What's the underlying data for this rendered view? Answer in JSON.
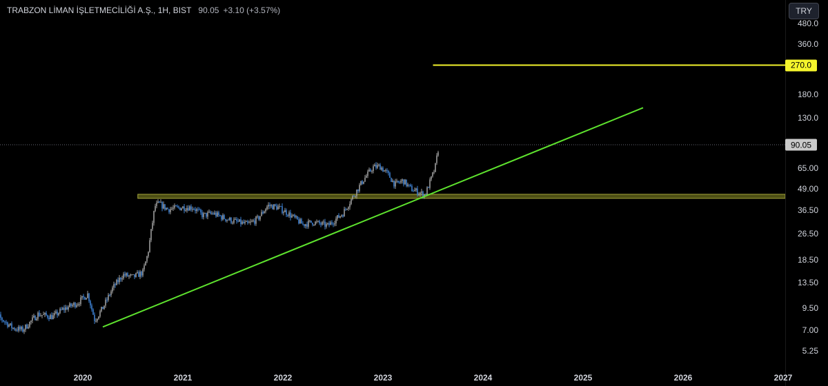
{
  "header": {
    "symbol": "TRABZON LİMAN İŞLETMECİLİĞİ A.Ş., 1H, BIST",
    "last_price": "90.05",
    "change": "+3.10 (+3.57%)"
  },
  "currency_button": "TRY",
  "price_axis": {
    "scale": "log",
    "ticks": [
      "480.0",
      "360.0",
      "180.0",
      "130.0",
      "65.00",
      "49.00",
      "36.50",
      "26.50",
      "18.50",
      "13.50",
      "9.50",
      "7.00",
      "5.25"
    ]
  },
  "time_axis": {
    "ticks": [
      "2020",
      "2021",
      "2022",
      "2023",
      "2024",
      "2025",
      "2026",
      "2027"
    ]
  },
  "current_price_tag": "90.05",
  "target_price_tag": "270.0",
  "colors": {
    "background": "#000000",
    "candle_up": "#9e9e9e",
    "candle_down": "#3d7fd1",
    "trendline": "#5ee32e",
    "target_line": "#f5f52c",
    "support_zone_fill": "#5b5c18",
    "support_zone_border": "#a2a43a",
    "current_price_tag_bg": "#c9c9c9",
    "target_tag_bg": "#f5f52c"
  },
  "chart_data": {
    "type": "line",
    "title": "",
    "scale": "log",
    "x_range": [
      2019.0,
      2027.0
    ],
    "y_range": [
      5.25,
      480.0
    ],
    "series": [
      {
        "x": [
          2019.0,
          2019.15,
          2019.3,
          2019.4,
          2019.55,
          2019.7,
          2019.8,
          2019.95,
          2020.05,
          2020.12,
          2020.2,
          2020.3,
          2020.4,
          2020.5,
          2020.6,
          2020.65,
          2020.72,
          2020.76,
          2020.85,
          2021.0,
          2021.1,
          2021.2,
          2021.3,
          2021.4,
          2021.5,
          2021.65,
          2021.75,
          2021.85,
          2021.95,
          2022.05,
          2022.2,
          2022.3,
          2022.45,
          2022.6,
          2022.7,
          2022.8,
          2022.9,
          2022.97,
          2023.05,
          2023.12,
          2023.2,
          2023.28,
          2023.35,
          2023.42,
          2023.48,
          2023.52,
          2023.56
        ],
        "values": [
          9.5,
          8.5,
          7.2,
          7.0,
          8.7,
          8.4,
          9.3,
          10.2,
          11.5,
          8.0,
          9.5,
          12.5,
          15.0,
          14.5,
          15.5,
          20.0,
          38.5,
          40.0,
          37.0,
          38.0,
          38.0,
          34.0,
          35.0,
          33.0,
          31.5,
          30.0,
          32.5,
          39.0,
          38.0,
          35.0,
          30.0,
          31.0,
          29.5,
          35.0,
          44.0,
          55.0,
          66.0,
          67.0,
          60.0,
          52.0,
          55.0,
          49.0,
          47.0,
          45.0,
          56.0,
          65.0,
          90.05
        ]
      }
    ],
    "annotations": [
      {
        "type": "trendline",
        "from": [
          2020.2,
          7.3
        ],
        "to": [
          2025.6,
          150.0
        ]
      },
      {
        "type": "horizontal_ray",
        "price": 270.0,
        "from_x": 2023.5
      },
      {
        "type": "zone",
        "y_low": 43.0,
        "y_high": 45.5,
        "from_x": 2020.55
      }
    ]
  }
}
